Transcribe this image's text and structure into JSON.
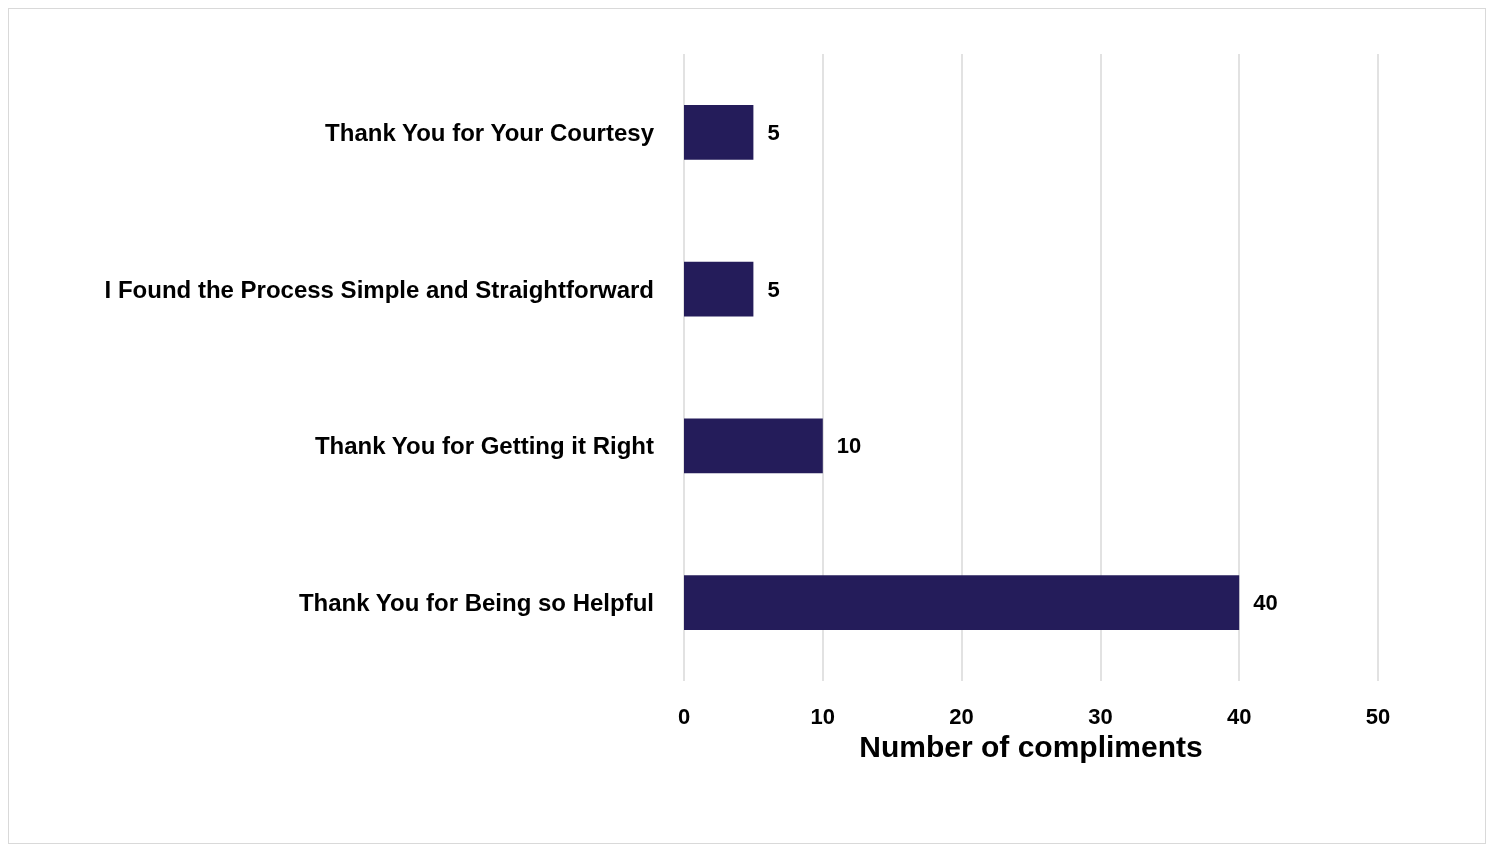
{
  "chart_data": {
    "type": "bar",
    "orientation": "horizontal",
    "xlabel": "Number of compliments",
    "categories": [
      "Thank You for Your Courtesy",
      "I Found the Process Simple and Straightforward",
      "Thank You for Getting it Right",
      "Thank You for Being so Helpful"
    ],
    "values": [
      5,
      5,
      10,
      40
    ],
    "color": "#241c5a",
    "xlim": [
      0,
      50
    ],
    "xticks": [
      0,
      10,
      20,
      30,
      40,
      50
    ],
    "grid": "x",
    "data_labels": true
  }
}
